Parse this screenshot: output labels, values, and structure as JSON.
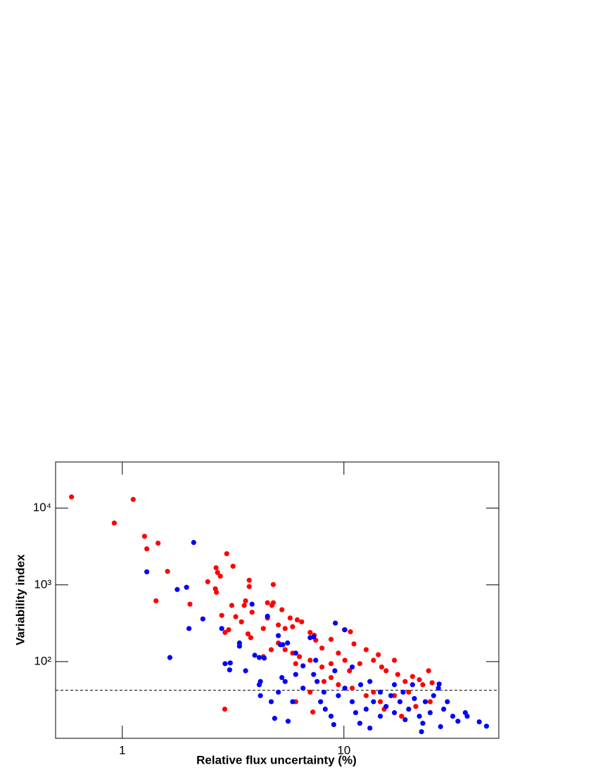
{
  "chart_data": {
    "type": "scatter",
    "x_label": "Relative flux uncertainty (%)",
    "y_label": "Variability index",
    "xlog": true,
    "ylog": true,
    "xlim": [
      0.5,
      50
    ],
    "ylim": [
      10,
      40000
    ],
    "xticks": [
      1,
      10
    ],
    "yticks": [
      {
        "value": 100,
        "label": "10²"
      },
      {
        "value": 1000,
        "label": "10³"
      },
      {
        "value": 10000,
        "label": "10⁴"
      }
    ],
    "threshold": 42.3,
    "series": [
      {
        "color": "#ff0000",
        "x": [
          0.59,
          1.12,
          0.92,
          1.26,
          1.29,
          1.45,
          1.6,
          1.42,
          2.02,
          2.43,
          2.65,
          2.69,
          2.77,
          2.96,
          2.63,
          2.66,
          3.16,
          2.9,
          3.74,
          3.74,
          3.6,
          3.55,
          3.12,
          2.81,
          3.25,
          3.45,
          3.85,
          4.52,
          4.73,
          4.8,
          4.8,
          5.25,
          4.52,
          4.33,
          3.69,
          3.8,
          3.02,
          2.91,
          5.06,
          5.43,
          5.72,
          6.16,
          5.87,
          6.45,
          7.04,
          7.35,
          7.46,
          7.96,
          8.75,
          10.06,
          10.7,
          11.1,
          5.06,
          4.7,
          4.33,
          5.43,
          5.87,
          6.3,
          6.06,
          7.04,
          7.96,
          8.75,
          9.44,
          10.1,
          10.6,
          11.8,
          12.6,
          13.6,
          14.3,
          14.8,
          15.5,
          16.9,
          17.5,
          18.9,
          20.4,
          21.9,
          24.1,
          22.7,
          25,
          19.6,
          16.9,
          13.6,
          10.9,
          9.44,
          8.13,
          7.04,
          6.06,
          7.24,
          8.75,
          12.6,
          14.6,
          15.2,
          18.2,
          21.1,
          24.5
        ],
        "values": [
          14000,
          13000,
          6400,
          4300,
          2950,
          3500,
          1500,
          620,
          560,
          1100,
          1670,
          1450,
          1300,
          2550,
          890,
          800,
          1750,
          24,
          1150,
          950,
          620,
          540,
          540,
          400,
          385,
          330,
          440,
          585,
          540,
          1010,
          585,
          475,
          370,
          270,
          230,
          205,
          260,
          240,
          300,
          270,
          370,
          350,
          285,
          330,
          240,
          220,
          190,
          150,
          195,
          260,
          245,
          170,
          175,
          143,
          116,
          143,
          129,
          116,
          94,
          104,
          85,
          94,
          129,
          104,
          76,
          94,
          143,
          104,
          123,
          85,
          76,
          104,
          68,
          55,
          64,
          58,
          76,
          50,
          53,
          40,
          36,
          40,
          45,
          50,
          55,
          40,
          30,
          22,
          62,
          36,
          30,
          24,
          19.4,
          26,
          30
        ]
      },
      {
        "color": "#0000ff",
        "x": [
          2.1,
          1.29,
          1.77,
          1.95,
          2.0,
          1.64,
          2.31,
          2.81,
          3.85,
          4.52,
          3.38,
          3.38,
          2.91,
          3.07,
          3.05,
          3.6,
          3.96,
          4.15,
          4.37,
          5.06,
          5.17,
          5.3,
          5.57,
          7.04,
          7.3,
          9.15,
          10.1,
          4.2,
          4.15,
          4.2,
          4.7,
          4.87,
          5.6,
          5.87,
          5.25,
          5.43,
          5.06,
          6.06,
          6.54,
          7.3,
          7.57,
          8.13,
          7.85,
          8.24,
          8.75,
          9.0,
          9.44,
          10.1,
          10.9,
          11.3,
          11.8,
          12.6,
          13.1,
          13.6,
          14.6,
          15.5,
          16.3,
          16.9,
          17.9,
          18.5,
          18.9,
          19.6,
          20.8,
          21.9,
          22.4,
          23.3,
          24.5,
          25.4,
          26.7,
          26.9,
          28.2,
          29.3,
          31,
          32.7,
          35.3,
          36,
          40.8,
          44.0,
          14.6,
          13.1,
          10.9,
          9.1,
          6.54,
          7.46,
          6.06,
          11.9,
          16.9,
          20.4,
          22.7,
          27.3
        ],
        "values": [
          3570,
          1480,
          870,
          930,
          270,
          113,
          360,
          270,
          560,
          390,
          175,
          159,
          94,
          96,
          78,
          76,
          121,
          113,
          111,
          218,
          166,
          166,
          175,
          205,
          210,
          318,
          260,
          55,
          50,
          36,
          30,
          18.2,
          16.7,
          30,
          62,
          55,
          40,
          68,
          45,
          68,
          55,
          40,
          30,
          24,
          19.4,
          15.1,
          36,
          45,
          30,
          21.6,
          15.7,
          24,
          13.6,
          30,
          19.4,
          26,
          36,
          21.6,
          30,
          40,
          17.5,
          24,
          33,
          19.4,
          12.2,
          30,
          21.6,
          36,
          45,
          51,
          24,
          30,
          19.4,
          16.7,
          21.6,
          19.4,
          16.4,
          14.4,
          40,
          55,
          85,
          76,
          88,
          104,
          129,
          50,
          50,
          50,
          15.7,
          14.2
        ]
      }
    ]
  }
}
